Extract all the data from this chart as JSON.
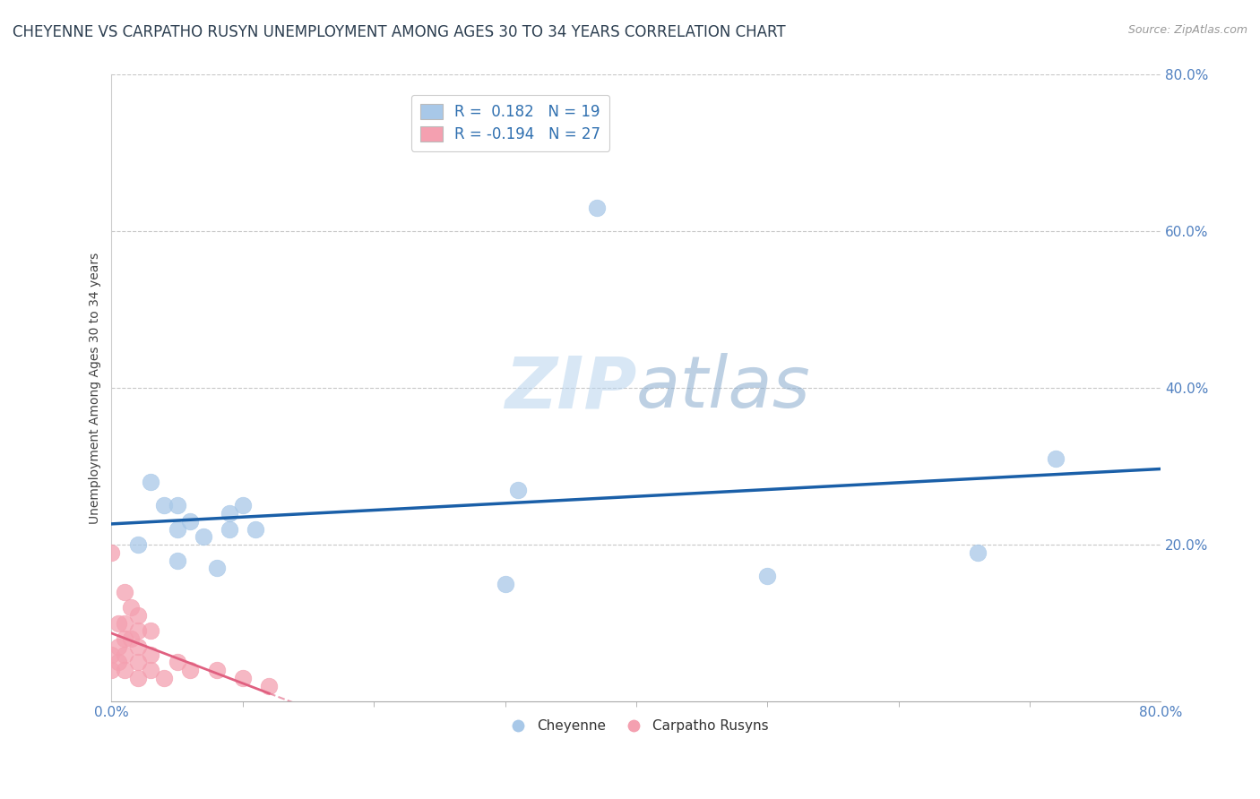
{
  "title": "CHEYENNE VS CARPATHO RUSYN UNEMPLOYMENT AMONG AGES 30 TO 34 YEARS CORRELATION CHART",
  "source": "Source: ZipAtlas.com",
  "ylabel": "Unemployment Among Ages 30 to 34 years",
  "xlim": [
    0.0,
    0.8
  ],
  "ylim": [
    0.0,
    0.8
  ],
  "xticks": [
    0.0,
    0.8
  ],
  "yticks": [
    0.2,
    0.4,
    0.6,
    0.8
  ],
  "xtick_labels": [
    "0.0%",
    "80.0%"
  ],
  "ytick_labels": [
    "20.0%",
    "40.0%",
    "60.0%",
    "80.0%"
  ],
  "cheyenne_R": 0.182,
  "cheyenne_N": 19,
  "carpatho_R": -0.194,
  "carpatho_N": 27,
  "cheyenne_color": "#a8c8e8",
  "carpatho_color": "#f4a0b0",
  "cheyenne_line_color": "#1a5fa8",
  "carpatho_line_color": "#e06080",
  "cheyenne_x": [
    0.02,
    0.03,
    0.04,
    0.05,
    0.05,
    0.06,
    0.07,
    0.08,
    0.09,
    0.09,
    0.1,
    0.11,
    0.3,
    0.31,
    0.37,
    0.5,
    0.66,
    0.72,
    0.05
  ],
  "cheyenne_y": [
    0.2,
    0.28,
    0.25,
    0.22,
    0.25,
    0.23,
    0.21,
    0.17,
    0.22,
    0.24,
    0.25,
    0.22,
    0.15,
    0.27,
    0.63,
    0.16,
    0.19,
    0.31,
    0.18
  ],
  "carpatho_x": [
    0.0,
    0.0,
    0.0,
    0.005,
    0.005,
    0.005,
    0.01,
    0.01,
    0.01,
    0.01,
    0.01,
    0.015,
    0.015,
    0.02,
    0.02,
    0.02,
    0.02,
    0.02,
    0.03,
    0.03,
    0.03,
    0.04,
    0.05,
    0.06,
    0.08,
    0.1,
    0.12
  ],
  "carpatho_y": [
    0.19,
    0.06,
    0.04,
    0.1,
    0.07,
    0.05,
    0.14,
    0.1,
    0.08,
    0.06,
    0.04,
    0.12,
    0.08,
    0.11,
    0.09,
    0.07,
    0.05,
    0.03,
    0.09,
    0.06,
    0.04,
    0.03,
    0.05,
    0.04,
    0.04,
    0.03,
    0.02
  ],
  "background_color": "#ffffff",
  "grid_color": "#c8c8c8",
  "watermark_zip": "ZIP",
  "watermark_atlas": "atlas",
  "legend_cheyenne_label": "Cheyenne",
  "legend_carpatho_label": "Carpatho Rusyns",
  "title_fontsize": 12,
  "axis_label_fontsize": 10,
  "tick_fontsize": 11,
  "legend_fontsize": 12
}
